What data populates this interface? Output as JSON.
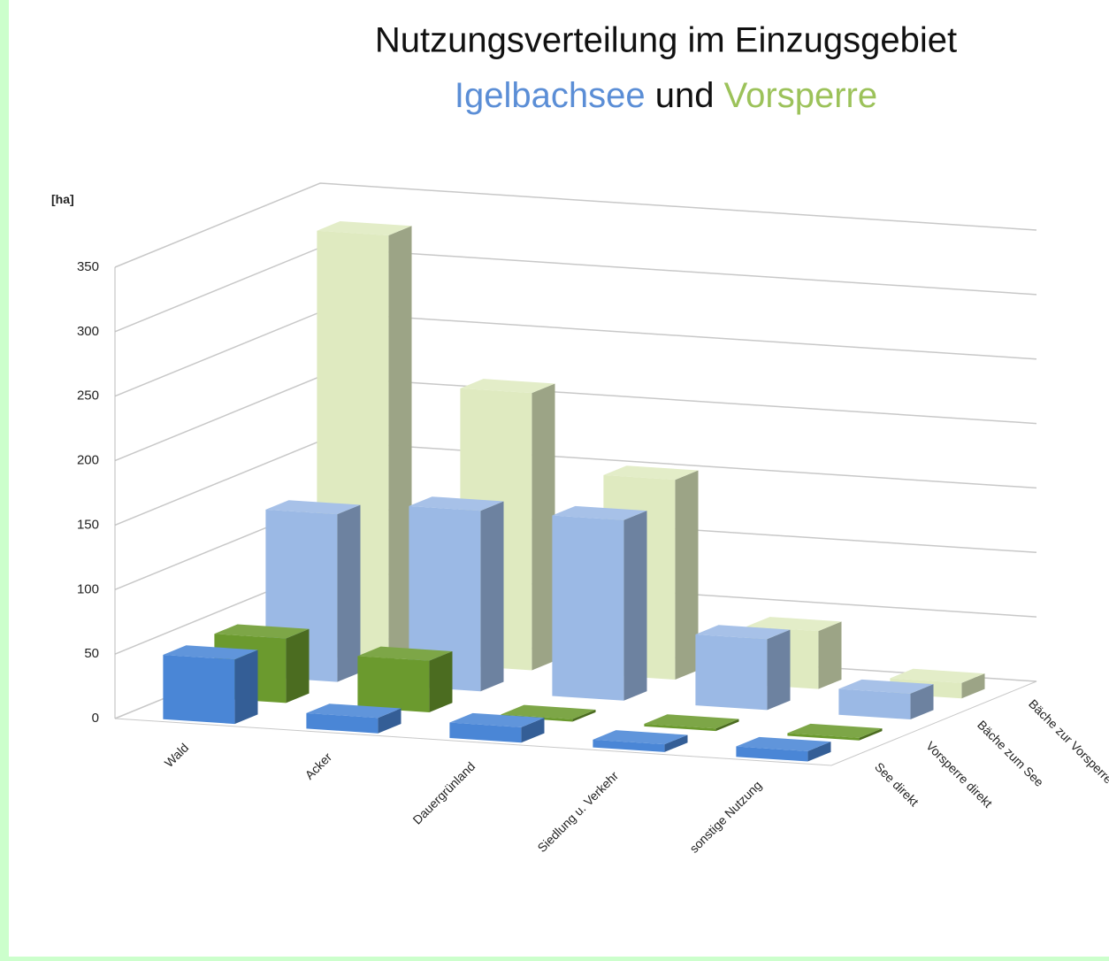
{
  "chart_data": {
    "type": "bar3d",
    "title": "Nutzungsverteilung im Einzugsgebiet",
    "subtitle": [
      "Igelbachsee",
      "und",
      "Vorsperre"
    ],
    "subtitle_colors": [
      "#5b8ed6",
      "#111111",
      "#9cc25a"
    ],
    "y_label": "[ha]",
    "categories": [
      "Wald",
      "Acker",
      "Dauergrünland",
      "Siedlung u. Verkehr",
      "sonstige Nutzung"
    ],
    "series": [
      {
        "name": "See direkt",
        "color": "#4a86d6",
        "values": [
          50,
          12,
          12,
          6,
          8
        ]
      },
      {
        "name": "Vorsperre direkt",
        "color": "#6b9a2e",
        "values": [
          50,
          40,
          2,
          2,
          2
        ]
      },
      {
        "name": "Bäche zum See",
        "color": "#9bb9e5",
        "values": [
          130,
          140,
          140,
          55,
          20
        ]
      },
      {
        "name": "Bäche zur Vorsperre",
        "color": "#dfeac0",
        "values": [
          330,
          215,
          155,
          45,
          12
        ]
      }
    ],
    "ylim": [
      0,
      350
    ],
    "yticks": [
      0,
      50,
      100,
      150,
      200,
      250,
      300,
      350
    ],
    "grid": true
  }
}
